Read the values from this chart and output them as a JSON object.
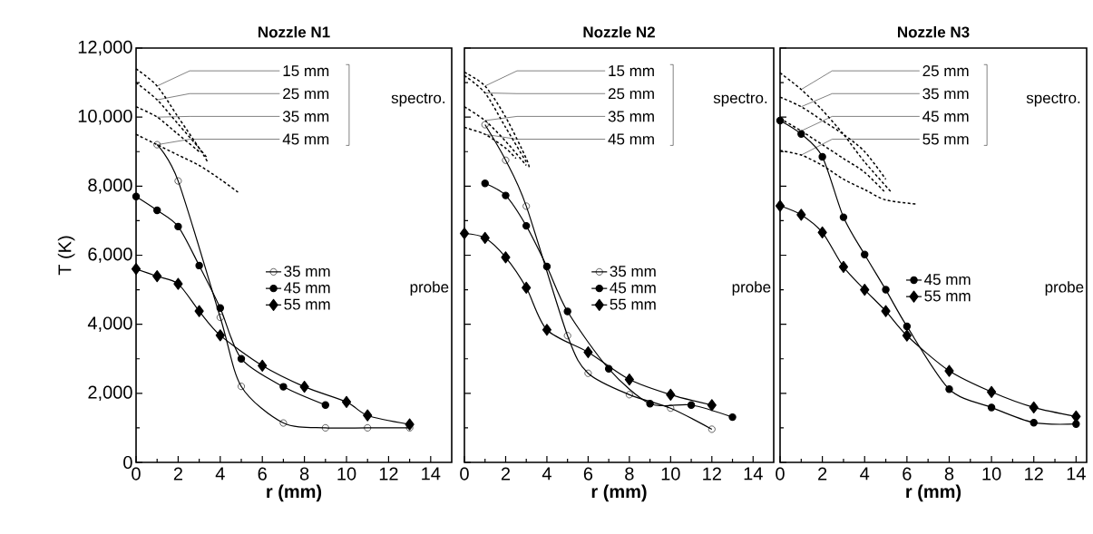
{
  "chart_data": [
    {
      "type": "line",
      "title": "Nozzle N1",
      "xlabel": "r (mm)",
      "ylabel": "T (K)",
      "xlim": [
        0,
        15
      ],
      "xticks": [
        0,
        2,
        4,
        6,
        8,
        10,
        12,
        14
      ],
      "ylim": [
        0,
        12000
      ],
      "yticks": [
        0,
        {
          "value": 2000,
          "label": "2,000"
        },
        {
          "value": 4000,
          "label": "4,000"
        },
        {
          "value": 6000,
          "label": "6,000"
        },
        {
          "value": 8000,
          "label": "8,000"
        },
        {
          "value": 10000,
          "label": "10,000"
        },
        {
          "value": 12000,
          "label": "12,000"
        }
      ],
      "legend": "right",
      "annotations": [
        "spectro.",
        "probe"
      ],
      "series": [
        {
          "name": "15 mm",
          "color": "#000000",
          "line_style": "dashed",
          "marker": "none",
          "x": [
            0,
            1,
            2,
            3,
            3.4
          ],
          "values": [
            11400,
            10900,
            10000,
            9100,
            8700
          ]
        },
        {
          "name": "25 mm",
          "color": "#000000",
          "line_style": "dashed",
          "marker": "none",
          "x": [
            0,
            1,
            2,
            3,
            3.4
          ],
          "values": [
            11000,
            10500,
            9800,
            9100,
            8800
          ]
        },
        {
          "name": "35 mm",
          "color": "#000000",
          "line_style": "dashed",
          "marker": "none",
          "x": [
            0,
            1,
            2,
            3
          ],
          "values": [
            10300,
            10000,
            9500,
            9000
          ]
        },
        {
          "name": "45 mm",
          "color": "#000000",
          "line_style": "dashed",
          "marker": "none",
          "x": [
            0,
            1,
            2,
            3,
            4,
            4.9
          ],
          "values": [
            9500,
            9200,
            8900,
            8600,
            8200,
            7800
          ]
        },
        {
          "name": "35 mm",
          "color": "#000000",
          "line_style": "solid",
          "marker": "circle_open",
          "x": [
            1,
            2,
            4,
            5,
            7,
            9,
            11,
            13
          ],
          "values": [
            9200,
            8150,
            4200,
            2200,
            1140,
            1000,
            1000,
            1000
          ]
        },
        {
          "name": "45 mm",
          "color": "#000000",
          "line_style": "solid",
          "marker": "circle",
          "x": [
            0,
            1,
            2,
            3,
            4,
            5,
            7,
            9
          ],
          "values": [
            7700,
            7300,
            6830,
            5700,
            4470,
            3000,
            2190,
            1660
          ]
        },
        {
          "name": "55 mm",
          "color": "#000000",
          "line_style": "solid",
          "marker": "diamond",
          "x": [
            0,
            1,
            2,
            3,
            4,
            6,
            8,
            10,
            11,
            13
          ],
          "values": [
            5600,
            5390,
            5170,
            4380,
            3680,
            2800,
            2190,
            1750,
            1360,
            1100
          ]
        }
      ]
    },
    {
      "type": "line",
      "title": "Nozzle N2",
      "xlabel": "r (mm)",
      "xlim": [
        0,
        15
      ],
      "xticks": [
        0,
        2,
        4,
        6,
        8,
        10,
        12,
        14
      ],
      "ylim": [
        0,
        12000
      ],
      "yticks": [
        {
          "value": 0,
          "label": null
        },
        {
          "value": 2000,
          "label": null
        },
        {
          "value": 4000,
          "label": null
        },
        {
          "value": 6000,
          "label": null
        },
        {
          "value": 8000,
          "label": null
        },
        {
          "value": 10000,
          "label": null
        },
        {
          "value": 12000,
          "label": null
        }
      ],
      "tick_labels": "x",
      "legend": "right",
      "annotations": [
        "spectro.",
        "probe"
      ],
      "series": [
        {
          "name": "15 mm",
          "color": "#000000",
          "line_style": "dashed",
          "marker": "none",
          "x": [
            0,
            1,
            2,
            3,
            3.15
          ],
          "values": [
            11300,
            10900,
            10000,
            8800,
            8500
          ]
        },
        {
          "name": "25 mm",
          "color": "#000000",
          "line_style": "dashed",
          "marker": "none",
          "x": [
            0,
            1,
            2,
            3
          ],
          "values": [
            11200,
            10700,
            9700,
            8700
          ]
        },
        {
          "name": "35 mm",
          "color": "#000000",
          "line_style": "dashed",
          "marker": "none",
          "x": [
            0,
            1,
            2,
            3
          ],
          "values": [
            10300,
            9900,
            9300,
            8600
          ]
        },
        {
          "name": "45 mm",
          "color": "#000000",
          "line_style": "dashed",
          "marker": "none",
          "x": [
            0,
            1,
            2,
            2.5
          ],
          "values": [
            9700,
            9500,
            9100,
            8800
          ]
        },
        {
          "name": "35 mm",
          "color": "#000000",
          "line_style": "solid",
          "marker": "circle_open",
          "x": [
            1,
            2,
            3,
            5,
            6,
            8,
            10,
            12
          ],
          "values": [
            9780,
            8750,
            7420,
            3670,
            2580,
            1960,
            1570,
            960
          ]
        },
        {
          "name": "45 mm",
          "color": "#000000",
          "line_style": "solid",
          "marker": "circle",
          "x": [
            1,
            2,
            3,
            4,
            5,
            7,
            9,
            11,
            13
          ],
          "values": [
            8080,
            7730,
            6850,
            5670,
            4370,
            2710,
            1700,
            1660,
            1310
          ]
        },
        {
          "name": "55 mm",
          "color": "#000000",
          "line_style": "solid",
          "marker": "diamond",
          "x": [
            0,
            1,
            2,
            3,
            4,
            6,
            8,
            10,
            12
          ],
          "values": [
            6630,
            6500,
            5940,
            5060,
            3840,
            3190,
            2400,
            1960,
            1660
          ]
        }
      ]
    },
    {
      "type": "line",
      "title": "Nozzle N3",
      "xlabel": "r (mm)",
      "xlim": [
        0,
        14.5
      ],
      "xticks": [
        0,
        2,
        4,
        6,
        8,
        10,
        12,
        14
      ],
      "ylim": [
        0,
        12000
      ],
      "yticks": [
        {
          "value": 0,
          "label": null
        },
        {
          "value": 2000,
          "label": null
        },
        {
          "value": 4000,
          "label": null
        },
        {
          "value": 6000,
          "label": null
        },
        {
          "value": 8000,
          "label": null
        },
        {
          "value": 10000,
          "label": null
        },
        {
          "value": 12000,
          "label": null
        }
      ],
      "tick_labels": "x",
      "legend": "right",
      "annotations": [
        "spectro.",
        "probe"
      ],
      "series": [
        {
          "name": "25 mm",
          "color": "#000000",
          "line_style": "dashed",
          "marker": "none",
          "x": [
            0,
            1,
            2,
            3,
            4,
            5.3
          ],
          "values": [
            11280,
            10800,
            10200,
            9500,
            8700,
            7800
          ]
        },
        {
          "name": "35 mm",
          "color": "#000000",
          "line_style": "dashed",
          "marker": "none",
          "x": [
            0,
            1,
            2,
            3,
            4,
            5
          ],
          "values": [
            10580,
            10300,
            9900,
            9500,
            9000,
            8200
          ]
        },
        {
          "name": "45 mm",
          "color": "#000000",
          "line_style": "dashed",
          "marker": "none",
          "x": [
            0,
            1,
            2,
            3,
            4,
            5
          ],
          "values": [
            9960,
            9600,
            9200,
            8800,
            8400,
            7800
          ]
        },
        {
          "name": "55 mm",
          "color": "#000000",
          "line_style": "dashed",
          "marker": "none",
          "x": [
            0,
            1,
            2,
            3,
            4,
            5,
            6.5
          ],
          "values": [
            9030,
            8900,
            8600,
            8200,
            7900,
            7600,
            7480
          ]
        },
        {
          "name": "45 mm",
          "color": "#000000",
          "line_style": "solid",
          "marker": "circle",
          "x": [
            0,
            1,
            2,
            3,
            4,
            5,
            6,
            8,
            10,
            12,
            14
          ],
          "values": [
            9900,
            9510,
            8850,
            7100,
            6020,
            5000,
            3940,
            2120,
            1590,
            1150,
            1110
          ]
        },
        {
          "name": "55 mm",
          "color": "#000000",
          "line_style": "solid",
          "marker": "diamond",
          "x": [
            0,
            1,
            2,
            3,
            4,
            5,
            6,
            8,
            10,
            12,
            14
          ],
          "values": [
            7430,
            7170,
            6660,
            5660,
            5000,
            4380,
            3670,
            2650,
            2040,
            1590,
            1330
          ]
        }
      ]
    }
  ]
}
